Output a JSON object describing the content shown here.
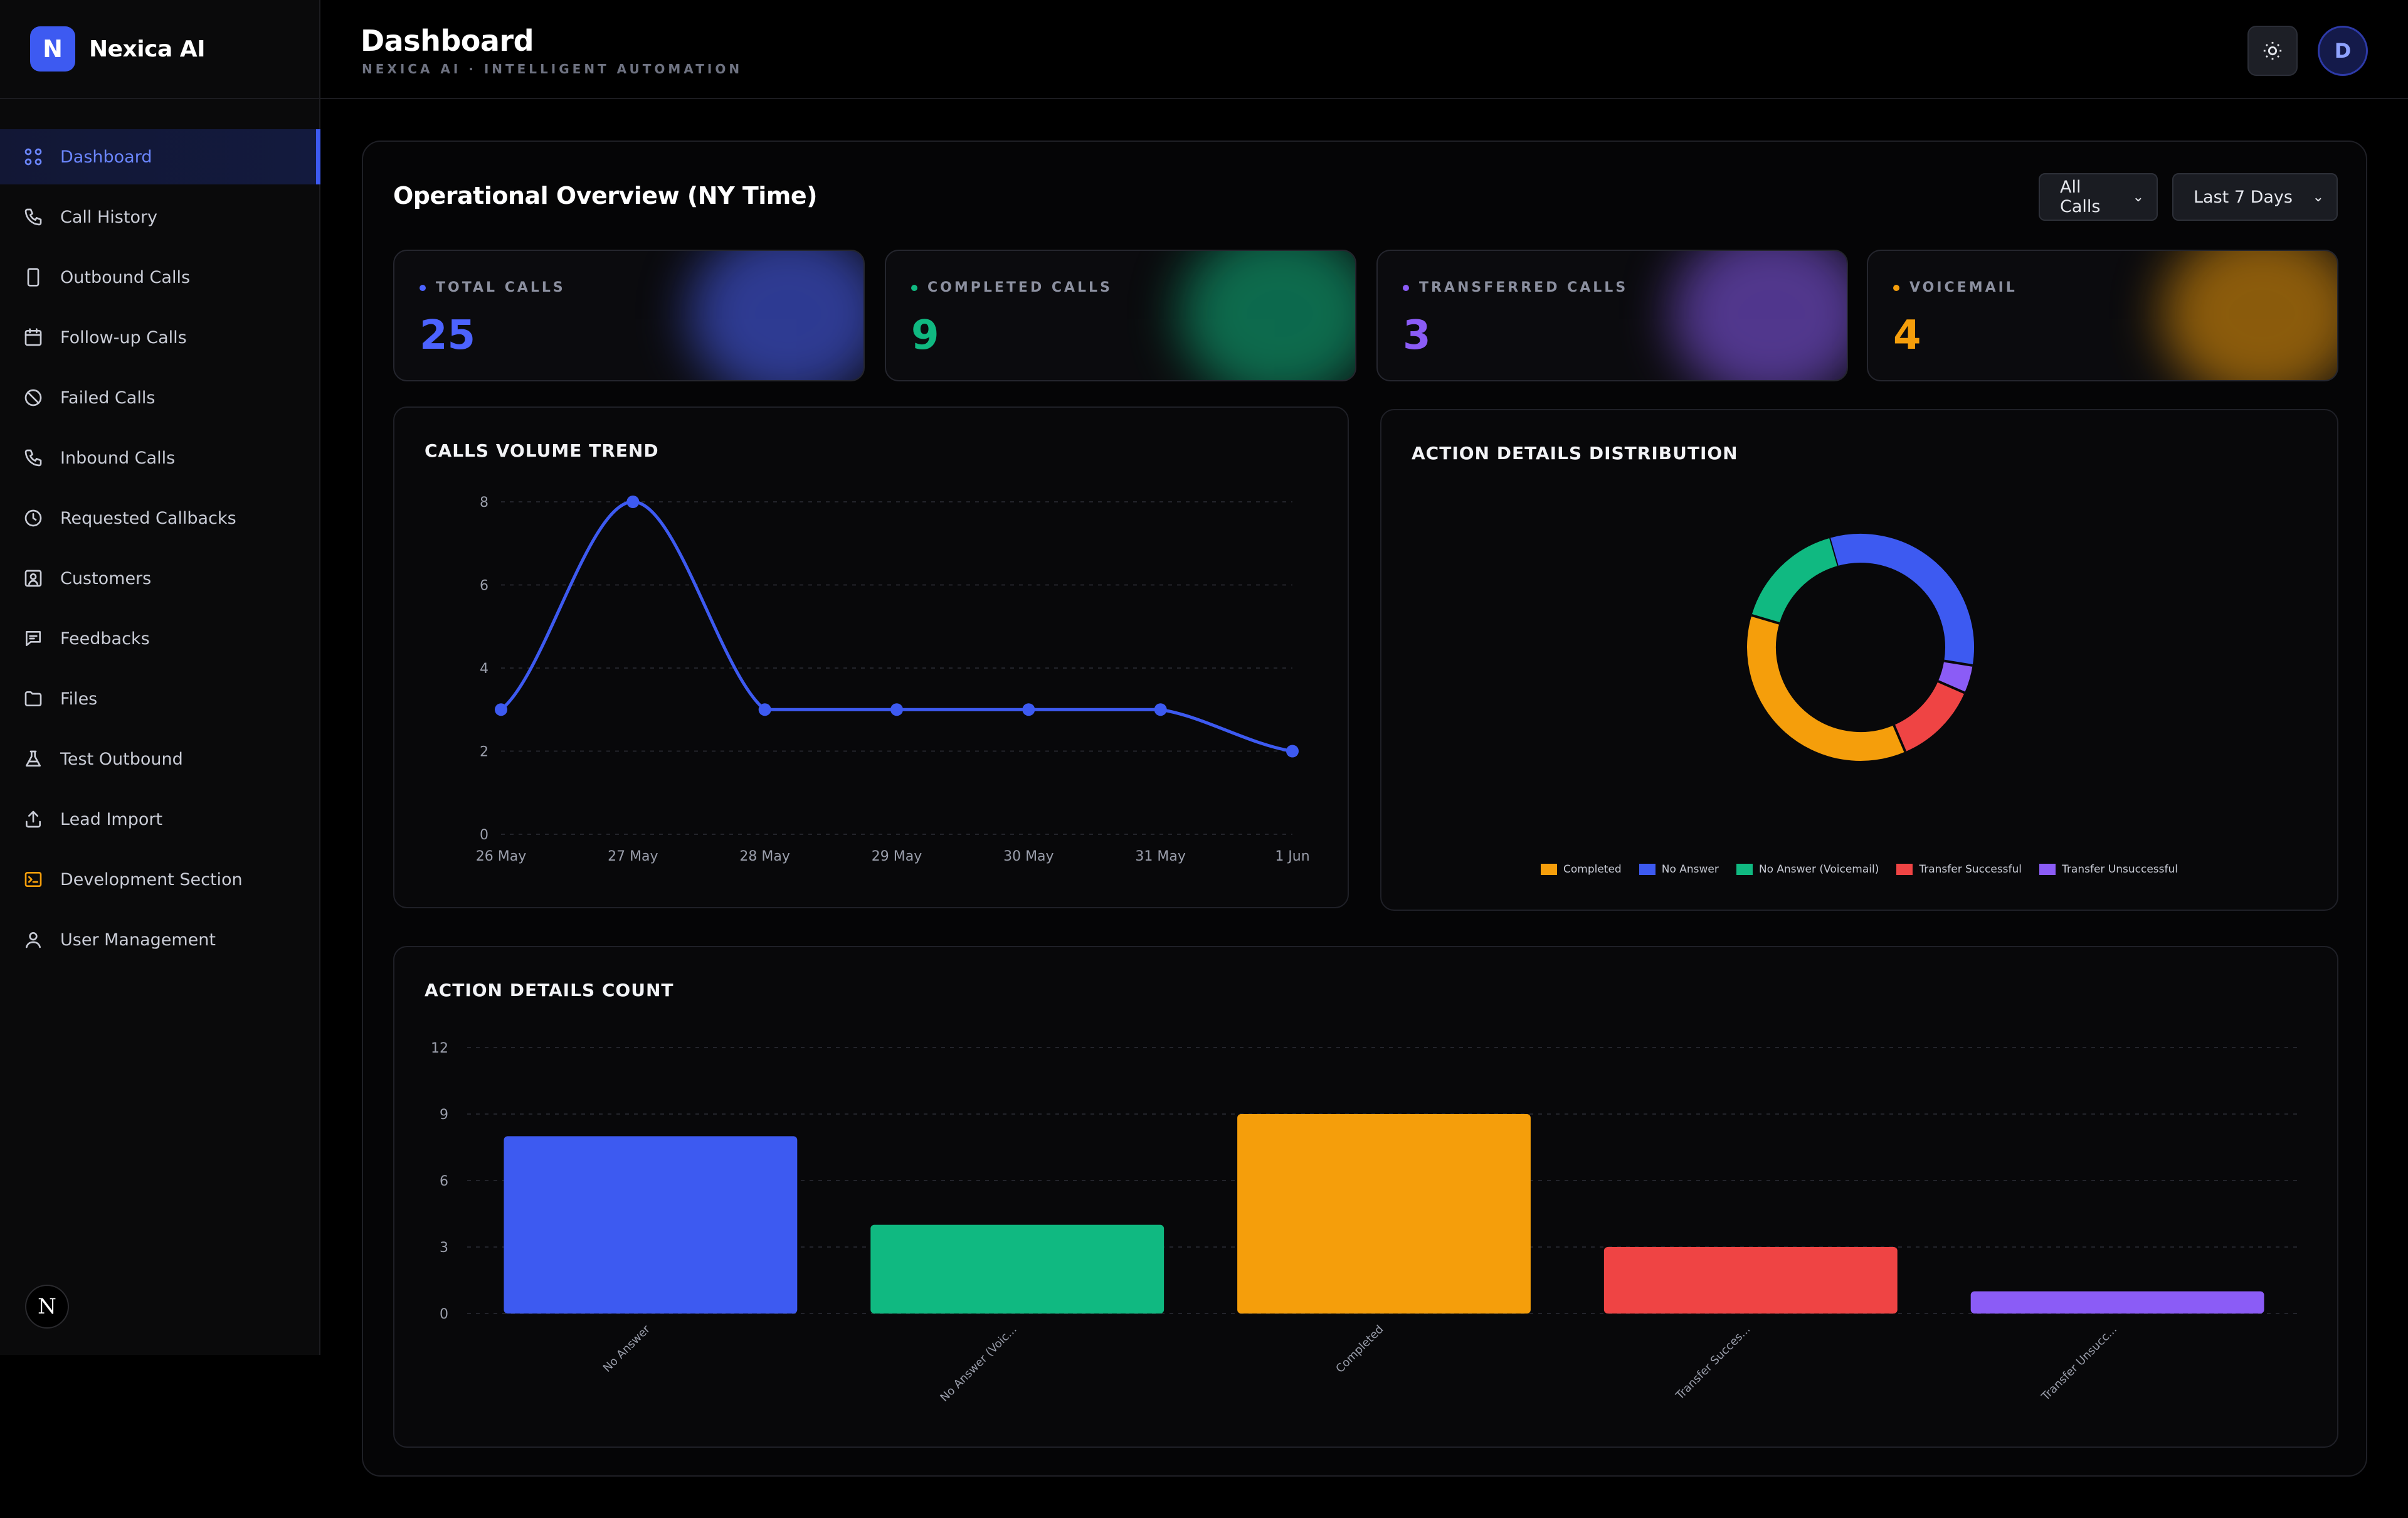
{
  "app": {
    "name": "Nexica AI",
    "logo_letter": "N",
    "brand_color": "#3d5af1"
  },
  "sidebar": {
    "items": [
      {
        "label": "Dashboard",
        "icon": "grid-icon",
        "active": true
      },
      {
        "label": "Call History",
        "icon": "phone-icon"
      },
      {
        "label": "Outbound Calls",
        "icon": "mobile-icon"
      },
      {
        "label": "Follow-up Calls",
        "icon": "calendar-icon"
      },
      {
        "label": "Failed Calls",
        "icon": "ban-icon"
      },
      {
        "label": "Inbound Calls",
        "icon": "phone-incoming-icon"
      },
      {
        "label": "Requested Callbacks",
        "icon": "clock-icon"
      },
      {
        "label": "Customers",
        "icon": "contact-icon"
      },
      {
        "label": "Feedbacks",
        "icon": "message-icon"
      },
      {
        "label": "Files",
        "icon": "folder-icon"
      },
      {
        "label": "Test Outbound",
        "icon": "flask-icon"
      },
      {
        "label": "Lead Import",
        "icon": "upload-icon"
      },
      {
        "label": "Development Section",
        "icon": "terminal-icon"
      },
      {
        "label": "User Management",
        "icon": "users-icon"
      }
    ],
    "footer_badge": "N"
  },
  "header": {
    "title": "Dashboard",
    "subtitle": "NEXICA AI · INTELLIGENT AUTOMATION",
    "avatar_letter": "D",
    "theme_icon": "sun-icon"
  },
  "overview": {
    "title": "Operational Overview (NY Time)",
    "filter_calls": "All Calls",
    "filter_range": "Last 7 Days"
  },
  "stats": [
    {
      "label": "TOTAL CALLS",
      "value": "25",
      "color": "#4c63ff"
    },
    {
      "label": "COMPLETED CALLS",
      "value": "9",
      "color": "#10b981"
    },
    {
      "label": "TRANSFERRED CALLS",
      "value": "3",
      "color": "#8b5cf6"
    },
    {
      "label": "VOICEMAIL",
      "value": "4",
      "color": "#f59e0b"
    }
  ],
  "chart_data": [
    {
      "type": "line",
      "title": "CALLS VOLUME TREND",
      "x": [
        "26 May",
        "27 May",
        "28 May",
        "29 May",
        "30 May",
        "31 May",
        "1 Jun"
      ],
      "values": [
        3,
        8,
        3,
        3,
        3,
        3,
        2
      ],
      "ylim": [
        0,
        8
      ],
      "yticks": [
        0,
        2,
        4,
        6,
        8
      ],
      "color": "#3d5af1",
      "grid": true
    },
    {
      "type": "pie",
      "title": "ACTION DETAILS DISTRIBUTION",
      "categories": [
        "Completed",
        "No Answer",
        "No Answer (Voicemail)",
        "Transfer Successful",
        "Transfer Unsuccessful"
      ],
      "values": [
        9,
        8,
        4,
        3,
        1
      ],
      "colors": [
        "#f59e0b",
        "#3d5af1",
        "#10b981",
        "#ef4444",
        "#8b5cf6"
      ],
      "legend": "bottom"
    },
    {
      "type": "bar",
      "title": "ACTION DETAILS COUNT",
      "categories": [
        "No Answer",
        "No Answer (Voic...",
        "Completed",
        "Transfer Succes...",
        "Transfer Unsucc..."
      ],
      "values": [
        8,
        4,
        9,
        3,
        1
      ],
      "colors": [
        "#3d5af1",
        "#10b981",
        "#f59e0b",
        "#ef4444",
        "#8b5cf6"
      ],
      "ylim": [
        0,
        12
      ],
      "yticks": [
        0,
        3,
        6,
        9,
        12
      ],
      "grid": true
    }
  ]
}
